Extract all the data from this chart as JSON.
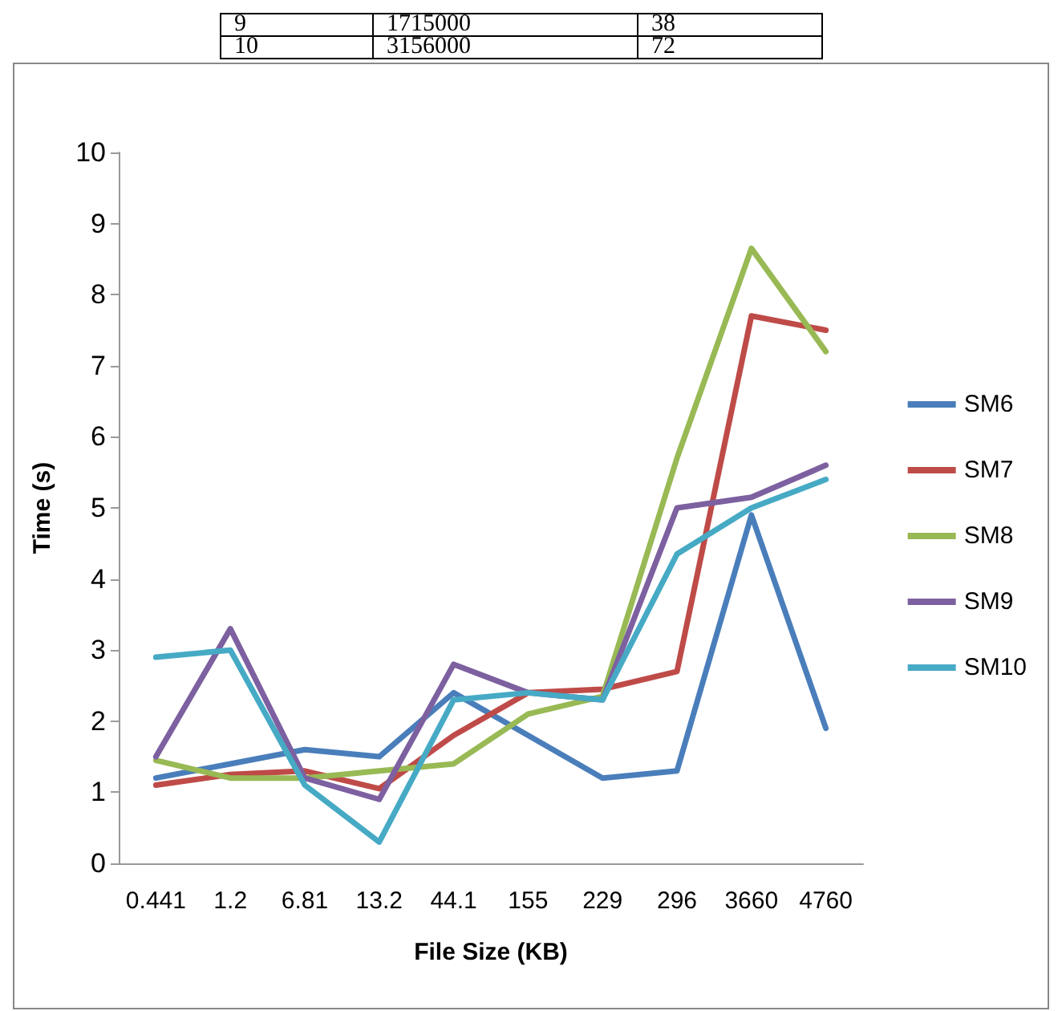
{
  "chart_data": {
    "type": "line",
    "xlabel": "File Size (KB)",
    "ylabel": "Time (s)",
    "categories": [
      "0.441",
      "1.2",
      "6.81",
      "13.2",
      "44.1",
      "155",
      "229",
      "296",
      "3660",
      "4760"
    ],
    "series": [
      {
        "name": "SM6",
        "color": "#4a7ebb",
        "values": [
          1.2,
          1.4,
          1.6,
          1.5,
          2.4,
          1.8,
          1.2,
          1.3,
          4.9,
          1.9
        ]
      },
      {
        "name": "SM7",
        "color": "#be4b48",
        "values": [
          1.1,
          1.25,
          1.3,
          1.05,
          1.8,
          2.4,
          2.45,
          2.7,
          7.7,
          7.5
        ]
      },
      {
        "name": "SM8",
        "color": "#98b954",
        "values": [
          1.45,
          1.2,
          1.2,
          1.3,
          1.4,
          2.1,
          2.35,
          5.7,
          8.65,
          7.2
        ]
      },
      {
        "name": "SM9",
        "color": "#7d60a0",
        "values": [
          1.5,
          3.3,
          1.2,
          0.9,
          2.8,
          2.4,
          2.3,
          5.0,
          5.15,
          5.6
        ]
      },
      {
        "name": "SM10",
        "color": "#46aac5",
        "values": [
          2.9,
          3.0,
          1.1,
          0.3,
          2.3,
          2.4,
          2.3,
          4.35,
          5.0,
          5.4
        ]
      }
    ],
    "ylim": [
      0,
      10
    ],
    "yticks": [
      0,
      1,
      2,
      3,
      4,
      5,
      6,
      7,
      8,
      9,
      10
    ],
    "grid": false,
    "legend": "right",
    "marker": "none",
    "line_style": "solid",
    "annotations": [
      "9",
      "1715000",
      "38",
      "10",
      "3156000",
      "72"
    ]
  }
}
